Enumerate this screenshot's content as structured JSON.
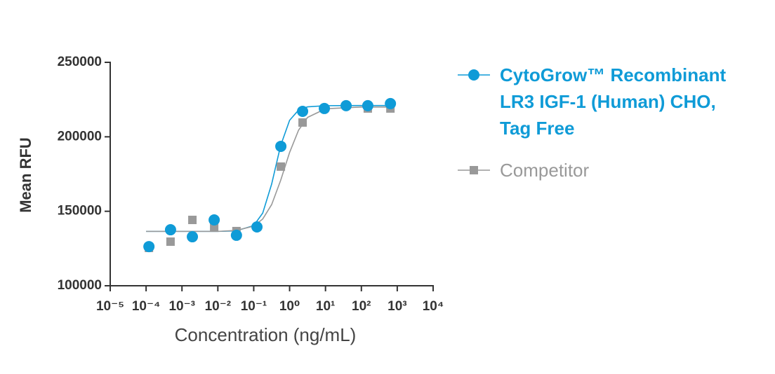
{
  "chart_data": {
    "type": "scatter",
    "x_label": "Concentration (ng/mL)",
    "y_label": "Mean RFU",
    "xscale": "log",
    "xlim": [
      1e-05,
      10000
    ],
    "ylim": [
      100000,
      250000
    ],
    "xticks": [
      {
        "value": 1e-05,
        "label": "10⁻⁵"
      },
      {
        "value": 0.0001,
        "label": "10⁻⁴"
      },
      {
        "value": 0.001,
        "label": "10⁻³"
      },
      {
        "value": 0.01,
        "label": "10⁻²"
      },
      {
        "value": 0.1,
        "label": "10⁻¹"
      },
      {
        "value": 1,
        "label": "10⁰"
      },
      {
        "value": 10,
        "label": "10¹"
      },
      {
        "value": 100,
        "label": "10²"
      },
      {
        "value": 1000,
        "label": "10³"
      },
      {
        "value": 10000,
        "label": "10⁴"
      }
    ],
    "yticks": [
      100000,
      150000,
      200000,
      250000
    ],
    "x": [
      0.00012,
      0.00048,
      0.00195,
      0.0079,
      0.033,
      0.123,
      0.57,
      2.3,
      9.3,
      37.6,
      151,
      645
    ],
    "fit_x": [
      0.0001,
      0.001,
      0.01,
      0.0316,
      0.1,
      0.178,
      0.316,
      0.562,
      1,
      1.78,
      3.16,
      10,
      100,
      631
    ],
    "series": [
      {
        "name": "CytoGrow™ Recombinant LR3 IGF-1 (Human) CHO, Tag Free",
        "color": "#0f9bd7",
        "marker": "circle",
        "values": [
          126300,
          137600,
          132900,
          144200,
          133900,
          139500,
          193600,
          217100,
          219000,
          220900,
          220900,
          222300
        ],
        "fit_values": [
          136500,
          136500,
          136500,
          136800,
          140400,
          148800,
          168300,
          194100,
          211100,
          218000,
          220100,
          220900,
          221000,
          221000
        ]
      },
      {
        "name": "Competitor",
        "color": "#999999",
        "marker": "square",
        "values": [
          125400,
          129600,
          144200,
          139000,
          136700,
          null,
          180000,
          209600,
          null,
          null,
          219000,
          219000
        ],
        "fit_values": [
          136500,
          136500,
          136500,
          137100,
          140000,
          144800,
          154500,
          170700,
          189500,
          204500,
          213000,
          218800,
          220000,
          220000
        ]
      }
    ]
  }
}
